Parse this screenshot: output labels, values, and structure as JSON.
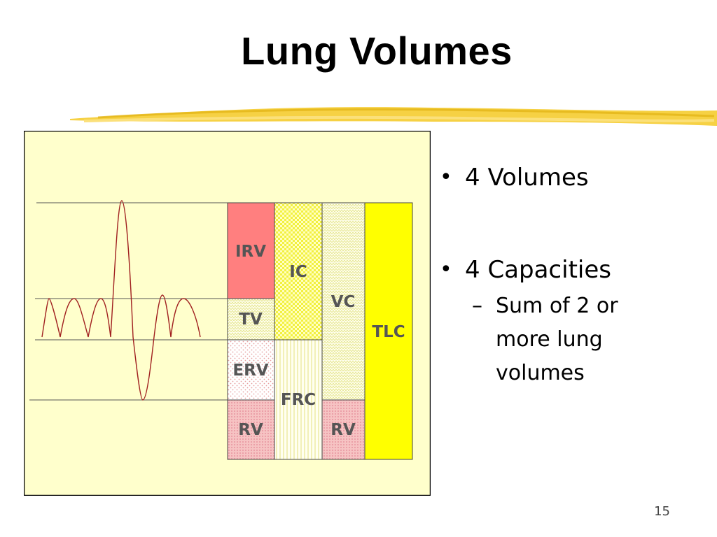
{
  "slide": {
    "title": "Lung Volumes",
    "page_number": "15"
  },
  "bullets": [
    {
      "text": "4 Volumes"
    },
    {
      "text": "4 Capacities",
      "sub": "Sum of 2 or more lung volumes"
    }
  ],
  "diagram": {
    "volumes": {
      "irv": "IRV",
      "tv": "TV",
      "erv": "ERV",
      "rv": "RV"
    },
    "capacities": {
      "ic": "IC",
      "frc": "FRC",
      "vc": "VC",
      "tlc": "TLC",
      "rv2": "RV"
    },
    "colors": {
      "panel_background": "#ffffcc",
      "irv": "#ff7f7f",
      "tlc": "#ffff00",
      "curve": "#a02020",
      "label": "#555555"
    }
  }
}
